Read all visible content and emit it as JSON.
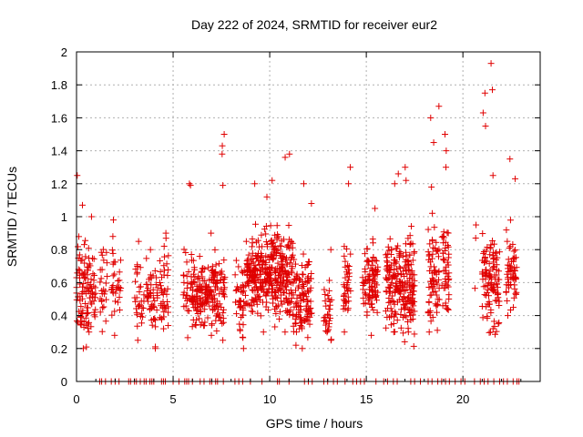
{
  "chart_data": {
    "type": "scatter",
    "title": "Day 222 of 2024, SRMTID for receiver eur2",
    "xlabel": "GPS time / hours",
    "ylabel": "SRMTID / TECUs",
    "xlim": [
      0,
      24
    ],
    "ylim": [
      0,
      2
    ],
    "xticks": [
      0,
      5,
      10,
      15,
      20
    ],
    "yticks": [
      0,
      0.2,
      0.4,
      0.6,
      0.8,
      1,
      1.2,
      1.4,
      1.6,
      1.8,
      2
    ],
    "xtick_labels": [
      "0",
      "5",
      "10",
      "15",
      "20"
    ],
    "ytick_labels": [
      "0",
      "0.2",
      "0.4",
      "0.6",
      "0.8",
      "1",
      "1.2",
      "1.4",
      "1.6",
      "1.8",
      "2"
    ],
    "grid": true,
    "marker": "plus",
    "color": "#e00000",
    "series": [
      {
        "name": "srmtid",
        "clusters": [
          {
            "x_start": 0.0,
            "x_end": 0.6,
            "n": 70,
            "base": 0.55,
            "spread": 0.45,
            "peaks": [
              1.25,
              1.07,
              0.2
            ]
          },
          {
            "x_start": 0.6,
            "x_end": 1.0,
            "n": 35,
            "base": 0.6,
            "spread": 0.35,
            "peaks": [
              1.0,
              0.3
            ]
          },
          {
            "x_start": 1.2,
            "x_end": 1.6,
            "n": 25,
            "base": 0.55,
            "spread": 0.3,
            "peaks": [
              0.72
            ]
          },
          {
            "x_start": 1.8,
            "x_end": 2.3,
            "n": 30,
            "base": 0.6,
            "spread": 0.3,
            "peaks": [
              0.98,
              0.88,
              0.28
            ]
          },
          {
            "x_start": 3.0,
            "x_end": 3.5,
            "n": 30,
            "base": 0.5,
            "spread": 0.3,
            "peaks": [
              0.85,
              0.25
            ]
          },
          {
            "x_start": 3.6,
            "x_end": 4.2,
            "n": 45,
            "base": 0.5,
            "spread": 0.3,
            "peaks": [
              0.2,
              0.8
            ]
          },
          {
            "x_start": 4.3,
            "x_end": 4.8,
            "n": 40,
            "base": 0.55,
            "spread": 0.35,
            "peaks": [
              0.9,
              0.32
            ]
          },
          {
            "x_start": 5.5,
            "x_end": 6.0,
            "n": 35,
            "base": 0.55,
            "spread": 0.45,
            "peaks": [
              1.2,
              1.19
            ]
          },
          {
            "x_start": 6.0,
            "x_end": 7.0,
            "n": 110,
            "base": 0.5,
            "spread": 0.3,
            "peaks": [
              0.9,
              0.28
            ]
          },
          {
            "x_start": 7.0,
            "x_end": 7.7,
            "n": 80,
            "base": 0.55,
            "spread": 0.35,
            "peaks": [
              1.5,
              1.43,
              1.38,
              1.19,
              0.25
            ]
          },
          {
            "x_start": 8.2,
            "x_end": 8.8,
            "n": 45,
            "base": 0.5,
            "spread": 0.3,
            "peaks": [
              0.2,
              0.85
            ]
          },
          {
            "x_start": 8.8,
            "x_end": 10.0,
            "n": 180,
            "base": 0.65,
            "spread": 0.35,
            "peaks": [
              1.2,
              1.12,
              0.3
            ]
          },
          {
            "x_start": 10.0,
            "x_end": 11.2,
            "n": 180,
            "base": 0.65,
            "spread": 0.4,
            "peaks": [
              1.38,
              1.36,
              1.22,
              0.3
            ]
          },
          {
            "x_start": 11.2,
            "x_end": 12.2,
            "n": 110,
            "base": 0.5,
            "spread": 0.35,
            "peaks": [
              1.2,
              1.08,
              0.2,
              0.22
            ]
          },
          {
            "x_start": 12.8,
            "x_end": 13.2,
            "n": 30,
            "base": 0.45,
            "spread": 0.3,
            "peaks": [
              0.25,
              0.8
            ]
          },
          {
            "x_start": 13.8,
            "x_end": 14.2,
            "n": 40,
            "base": 0.6,
            "spread": 0.35,
            "peaks": [
              1.3,
              1.2,
              0.3
            ]
          },
          {
            "x_start": 14.8,
            "x_end": 15.6,
            "n": 90,
            "base": 0.6,
            "spread": 0.35,
            "peaks": [
              1.05,
              0.28
            ]
          },
          {
            "x_start": 16.0,
            "x_end": 16.8,
            "n": 110,
            "base": 0.6,
            "spread": 0.4,
            "peaks": [
              1.26,
              1.2,
              0.3
            ]
          },
          {
            "x_start": 16.8,
            "x_end": 17.5,
            "n": 110,
            "base": 0.6,
            "spread": 0.4,
            "peaks": [
              1.3,
              1.22,
              0.3
            ]
          },
          {
            "x_start": 18.2,
            "x_end": 18.8,
            "n": 70,
            "base": 0.6,
            "spread": 0.45,
            "peaks": [
              1.67,
              1.6,
              1.45,
              1.18,
              0.3
            ]
          },
          {
            "x_start": 18.9,
            "x_end": 19.3,
            "n": 45,
            "base": 0.65,
            "spread": 0.4,
            "peaks": [
              1.5,
              1.4,
              1.3
            ]
          },
          {
            "x_start": 20.6,
            "x_end": 20.7,
            "n": 2,
            "base": 0.7,
            "spread": 0.3,
            "peaks": [
              0.95
            ]
          },
          {
            "x_start": 21.0,
            "x_end": 21.9,
            "n": 110,
            "base": 0.6,
            "spread": 0.4,
            "peaks": [
              1.93,
              1.77,
              1.75,
              1.63,
              1.55,
              1.25,
              0.35
            ]
          },
          {
            "x_start": 22.2,
            "x_end": 22.8,
            "n": 55,
            "base": 0.65,
            "spread": 0.35,
            "peaks": [
              1.35,
              1.23,
              0.4
            ]
          }
        ],
        "zero_points_x": [
          1.2,
          1.3,
          1.5,
          1.8,
          2.0,
          2.2,
          2.7,
          2.8,
          3.0,
          3.1,
          3.3,
          3.5,
          3.6,
          3.8,
          3.9,
          4.0,
          4.4,
          4.5,
          4.6,
          5.0,
          5.3,
          5.6,
          5.7,
          5.8,
          6.0,
          6.4,
          6.6,
          6.9,
          7.0,
          7.2,
          7.3,
          7.6,
          8.2,
          8.4,
          8.6,
          9.0,
          9.6,
          10.4,
          10.5,
          11.0,
          11.8,
          12.0,
          12.2,
          12.8,
          13.0,
          13.3,
          13.5,
          13.9,
          14.3,
          14.5,
          14.7,
          14.9,
          15.5,
          15.9,
          16.1,
          16.4,
          16.6,
          17.3,
          17.5,
          17.8,
          18.2,
          18.4,
          18.7,
          18.9,
          19.1,
          19.3,
          19.6,
          19.9,
          20.1,
          20.6,
          20.9,
          21.1,
          21.3,
          21.6,
          21.9,
          22.1,
          22.3,
          22.6,
          22.8,
          22.9
        ]
      }
    ]
  }
}
